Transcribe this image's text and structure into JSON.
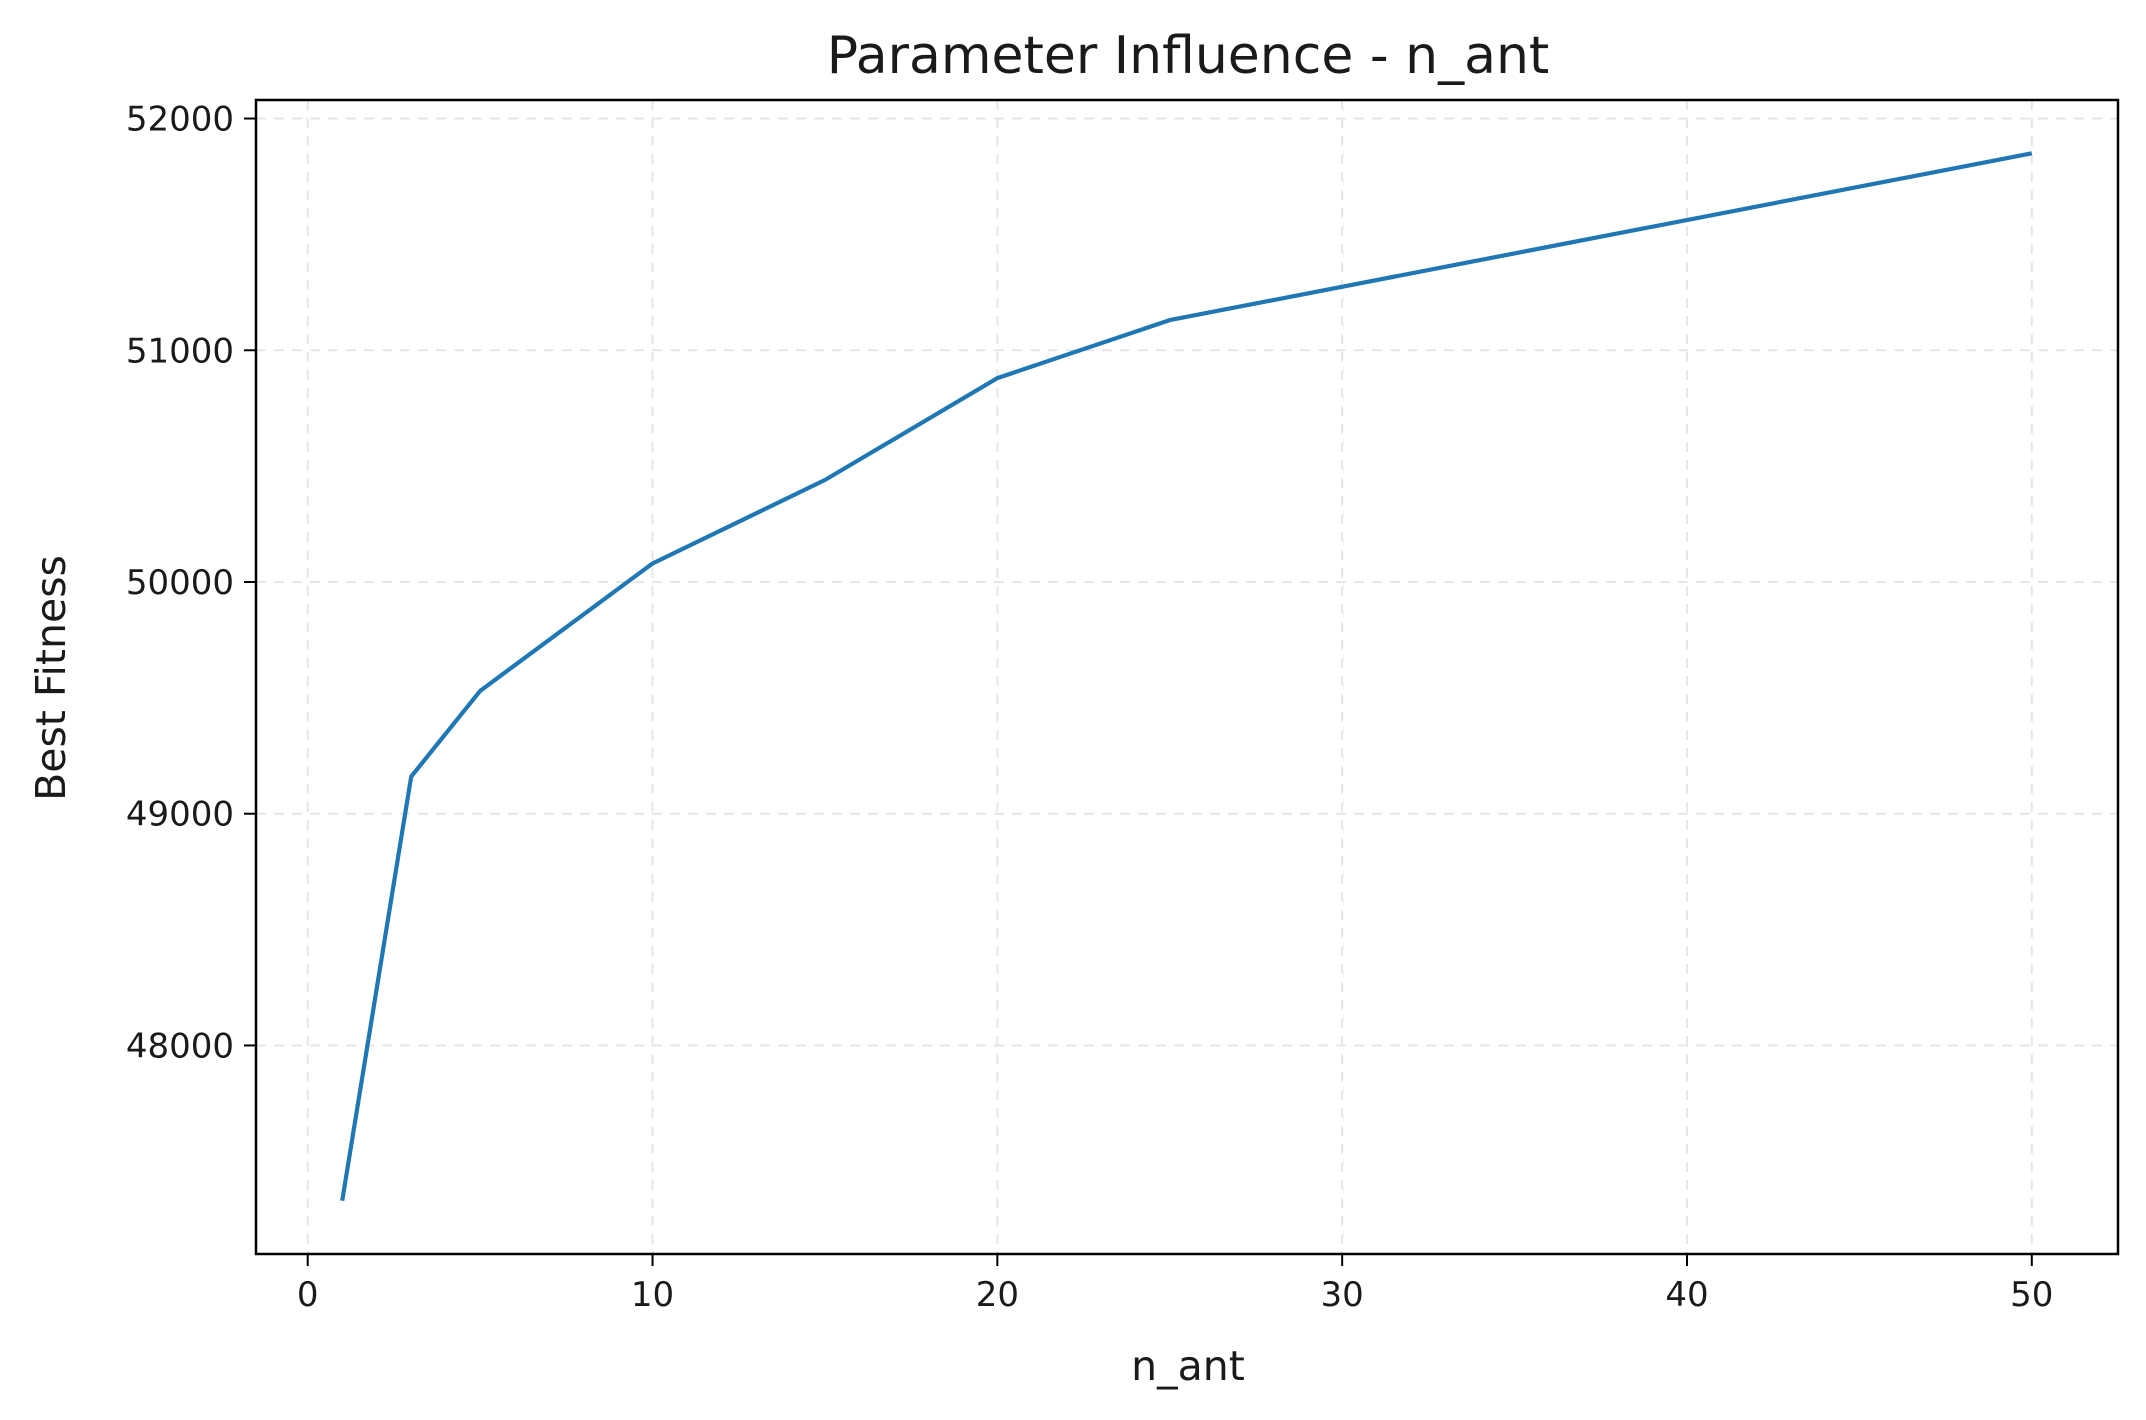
{
  "chart_data": {
    "type": "line",
    "title": "Parameter Influence - n_ant",
    "xlabel": "n_ant",
    "ylabel": "Best Fitness",
    "xlim": [
      -1.5,
      52.5
    ],
    "ylim": [
      47100,
      52080
    ],
    "x_ticks": [
      0,
      10,
      20,
      30,
      40,
      50
    ],
    "y_ticks": [
      48000,
      49000,
      50000,
      51000,
      52000
    ],
    "x_tick_labels": [
      "0",
      "10",
      "20",
      "30",
      "40",
      "50"
    ],
    "y_tick_labels": [
      "48000",
      "49000",
      "50000",
      "51000",
      "52000"
    ],
    "grid": true,
    "legend": "none",
    "series": [
      {
        "color": "#1f77b4",
        "x": [
          1,
          3,
          5,
          10,
          15,
          20,
          25,
          50
        ],
        "y": [
          47330,
          49160,
          49530,
          50080,
          50440,
          50880,
          51130,
          51850
        ]
      }
    ]
  }
}
